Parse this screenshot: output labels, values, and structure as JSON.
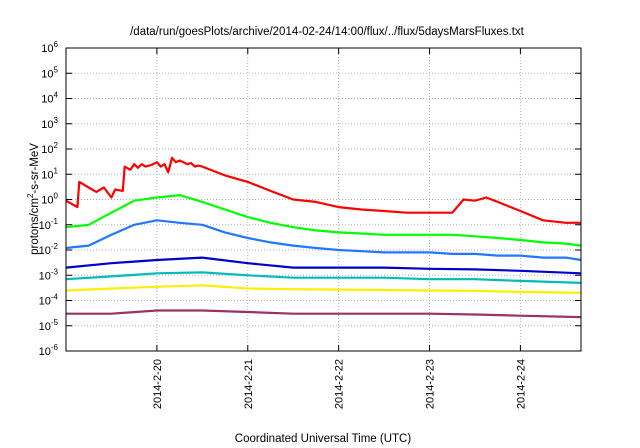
{
  "chart_data": {
    "type": "line",
    "title": "/data/run/goesPlots/archive/2014-02-24/14:00/flux/../flux/5daysMarsFluxes.txt",
    "xlabel": "Coordinated Universal Time (UTC)",
    "ylabel": {
      "pre": "protons/cm",
      "sup": "2",
      "post": "-s-sr-MeV"
    },
    "y_scale": "log",
    "ylim": [
      1e-06,
      1000000.0
    ],
    "y_ticks": [
      {
        "base": "10",
        "exp": "-6"
      },
      {
        "base": "10",
        "exp": "-5"
      },
      {
        "base": "10",
        "exp": "-4"
      },
      {
        "base": "10",
        "exp": "-3"
      },
      {
        "base": "10",
        "exp": "-2"
      },
      {
        "base": "10",
        "exp": "-1"
      },
      {
        "base": "10",
        "exp": "0"
      },
      {
        "base": "10",
        "exp": "1"
      },
      {
        "base": "10",
        "exp": "2"
      },
      {
        "base": "10",
        "exp": "3"
      },
      {
        "base": "10",
        "exp": "4"
      },
      {
        "base": "10",
        "exp": "5"
      },
      {
        "base": "10",
        "exp": "6"
      }
    ],
    "xlim": [
      "2014-02-19 00:00",
      "2014-02-24 16:00"
    ],
    "x_ticks": [
      "2014-2-20",
      "2014-2-21",
      "2014-2-22",
      "2014-2-23",
      "2014-2-24"
    ],
    "grid": true,
    "legend": "none",
    "series": [
      {
        "color": "#ff0000",
        "x": [
          "2014-02-19 00:00",
          "2014-02-19 03:00",
          "2014-02-19 03:30",
          "2014-02-19 06:00",
          "2014-02-19 08:00",
          "2014-02-19 10:00",
          "2014-02-19 12:00",
          "2014-02-19 13:00",
          "2014-02-19 15:00",
          "2014-02-19 15:30",
          "2014-02-19 17:00",
          "2014-02-19 18:00",
          "2014-02-19 19:00",
          "2014-02-19 20:00",
          "2014-02-19 21:00",
          "2014-02-19 22:00",
          "2014-02-19 23:00",
          "2014-02-20 00:00",
          "2014-02-20 01:00",
          "2014-02-20 02:00",
          "2014-02-20 03:00",
          "2014-02-20 04:00",
          "2014-02-20 05:00",
          "2014-02-20 06:00",
          "2014-02-20 07:00",
          "2014-02-20 08:00",
          "2014-02-20 09:00",
          "2014-02-20 10:00",
          "2014-02-20 11:00",
          "2014-02-20 12:00",
          "2014-02-20 18:00",
          "2014-02-21 00:00",
          "2014-02-21 06:00",
          "2014-02-21 12:00",
          "2014-02-21 18:00",
          "2014-02-22 00:00",
          "2014-02-22 06:00",
          "2014-02-22 12:00",
          "2014-02-22 18:00",
          "2014-02-23 00:00",
          "2014-02-23 06:00",
          "2014-02-23 09:00",
          "2014-02-23 12:00",
          "2014-02-23 15:00",
          "2014-02-23 18:00",
          "2014-02-24 00:00",
          "2014-02-24 06:00",
          "2014-02-24 12:00",
          "2014-02-24 16:00"
        ],
        "y": [
          0.9,
          0.5,
          5,
          3,
          2,
          3,
          1.2,
          2.5,
          2.2,
          20,
          15,
          25,
          18,
          25,
          20,
          22,
          25,
          30,
          20,
          25,
          12,
          45,
          30,
          35,
          30,
          25,
          28,
          20,
          22,
          20,
          9,
          5,
          2.2,
          1,
          0.8,
          0.5,
          0.4,
          0.35,
          0.3,
          0.3,
          0.3,
          1,
          0.9,
          1.2,
          0.8,
          0.35,
          0.15,
          0.12,
          0.12
        ]
      },
      {
        "color": "#00ff00",
        "x": [
          "2014-02-19 00:00",
          "2014-02-19 06:00",
          "2014-02-19 12:00",
          "2014-02-19 18:00",
          "2014-02-20 00:00",
          "2014-02-20 06:00",
          "2014-02-20 12:00",
          "2014-02-20 18:00",
          "2014-02-21 00:00",
          "2014-02-21 06:00",
          "2014-02-21 12:00",
          "2014-02-21 18:00",
          "2014-02-22 00:00",
          "2014-02-22 06:00",
          "2014-02-22 12:00",
          "2014-02-22 18:00",
          "2014-02-23 00:00",
          "2014-02-23 06:00",
          "2014-02-23 12:00",
          "2014-02-23 18:00",
          "2014-02-24 00:00",
          "2014-02-24 06:00",
          "2014-02-24 12:00",
          "2014-02-24 16:00"
        ],
        "y": [
          0.08,
          0.1,
          0.3,
          0.9,
          1.2,
          1.5,
          0.8,
          0.4,
          0.2,
          0.12,
          0.08,
          0.06,
          0.05,
          0.045,
          0.04,
          0.04,
          0.04,
          0.04,
          0.035,
          0.03,
          0.025,
          0.02,
          0.018,
          0.015
        ]
      },
      {
        "color": "#2277ff",
        "x": [
          "2014-02-19 00:00",
          "2014-02-19 06:00",
          "2014-02-19 12:00",
          "2014-02-19 18:00",
          "2014-02-20 00:00",
          "2014-02-20 06:00",
          "2014-02-20 12:00",
          "2014-02-20 18:00",
          "2014-02-21 00:00",
          "2014-02-21 06:00",
          "2014-02-21 12:00",
          "2014-02-21 18:00",
          "2014-02-22 00:00",
          "2014-02-22 06:00",
          "2014-02-22 12:00",
          "2014-02-22 18:00",
          "2014-02-23 00:00",
          "2014-02-23 06:00",
          "2014-02-23 12:00",
          "2014-02-23 18:00",
          "2014-02-24 00:00",
          "2014-02-24 06:00",
          "2014-02-24 12:00",
          "2014-02-24 16:00"
        ],
        "y": [
          0.012,
          0.015,
          0.04,
          0.1,
          0.15,
          0.12,
          0.1,
          0.05,
          0.03,
          0.02,
          0.015,
          0.012,
          0.01,
          0.009,
          0.008,
          0.008,
          0.008,
          0.007,
          0.007,
          0.006,
          0.006,
          0.005,
          0.005,
          0.004
        ]
      },
      {
        "color": "#0000cc",
        "x": [
          "2014-02-19 00:00",
          "2014-02-19 12:00",
          "2014-02-20 00:00",
          "2014-02-20 12:00",
          "2014-02-21 00:00",
          "2014-02-21 12:00",
          "2014-02-22 00:00",
          "2014-02-22 12:00",
          "2014-02-23 00:00",
          "2014-02-23 12:00",
          "2014-02-24 00:00",
          "2014-02-24 16:00"
        ],
        "y": [
          0.002,
          0.003,
          0.004,
          0.005,
          0.003,
          0.002,
          0.002,
          0.002,
          0.0018,
          0.0017,
          0.0015,
          0.0012
        ]
      },
      {
        "color": "#00bbbb",
        "x": [
          "2014-02-19 00:00",
          "2014-02-19 12:00",
          "2014-02-20 00:00",
          "2014-02-20 12:00",
          "2014-02-21 00:00",
          "2014-02-21 12:00",
          "2014-02-22 00:00",
          "2014-02-22 12:00",
          "2014-02-23 00:00",
          "2014-02-23 12:00",
          "2014-02-24 00:00",
          "2014-02-24 16:00"
        ],
        "y": [
          0.0007,
          0.0009,
          0.0012,
          0.0013,
          0.001,
          0.0008,
          0.0008,
          0.0008,
          0.0007,
          0.0007,
          0.0006,
          0.0005
        ]
      },
      {
        "color": "#ffee00",
        "x": [
          "2014-02-19 00:00",
          "2014-02-19 12:00",
          "2014-02-20 00:00",
          "2014-02-20 12:00",
          "2014-02-21 00:00",
          "2014-02-21 12:00",
          "2014-02-22 00:00",
          "2014-02-22 12:00",
          "2014-02-23 00:00",
          "2014-02-23 12:00",
          "2014-02-24 00:00",
          "2014-02-24 16:00"
        ],
        "y": [
          0.00025,
          0.0003,
          0.00035,
          0.0004,
          0.0003,
          0.00028,
          0.00027,
          0.00026,
          0.00025,
          0.00024,
          0.00022,
          0.0002
        ]
      },
      {
        "color": "#993366",
        "x": [
          "2014-02-19 00:00",
          "2014-02-19 12:00",
          "2014-02-20 00:00",
          "2014-02-20 12:00",
          "2014-02-21 00:00",
          "2014-02-21 12:00",
          "2014-02-22 00:00",
          "2014-02-22 12:00",
          "2014-02-23 00:00",
          "2014-02-23 12:00",
          "2014-02-24 00:00",
          "2014-02-24 16:00"
        ],
        "y": [
          3e-05,
          3e-05,
          4e-05,
          4e-05,
          3.5e-05,
          3e-05,
          3e-05,
          3e-05,
          3e-05,
          2.8e-05,
          2.5e-05,
          2.2e-05
        ]
      }
    ]
  }
}
